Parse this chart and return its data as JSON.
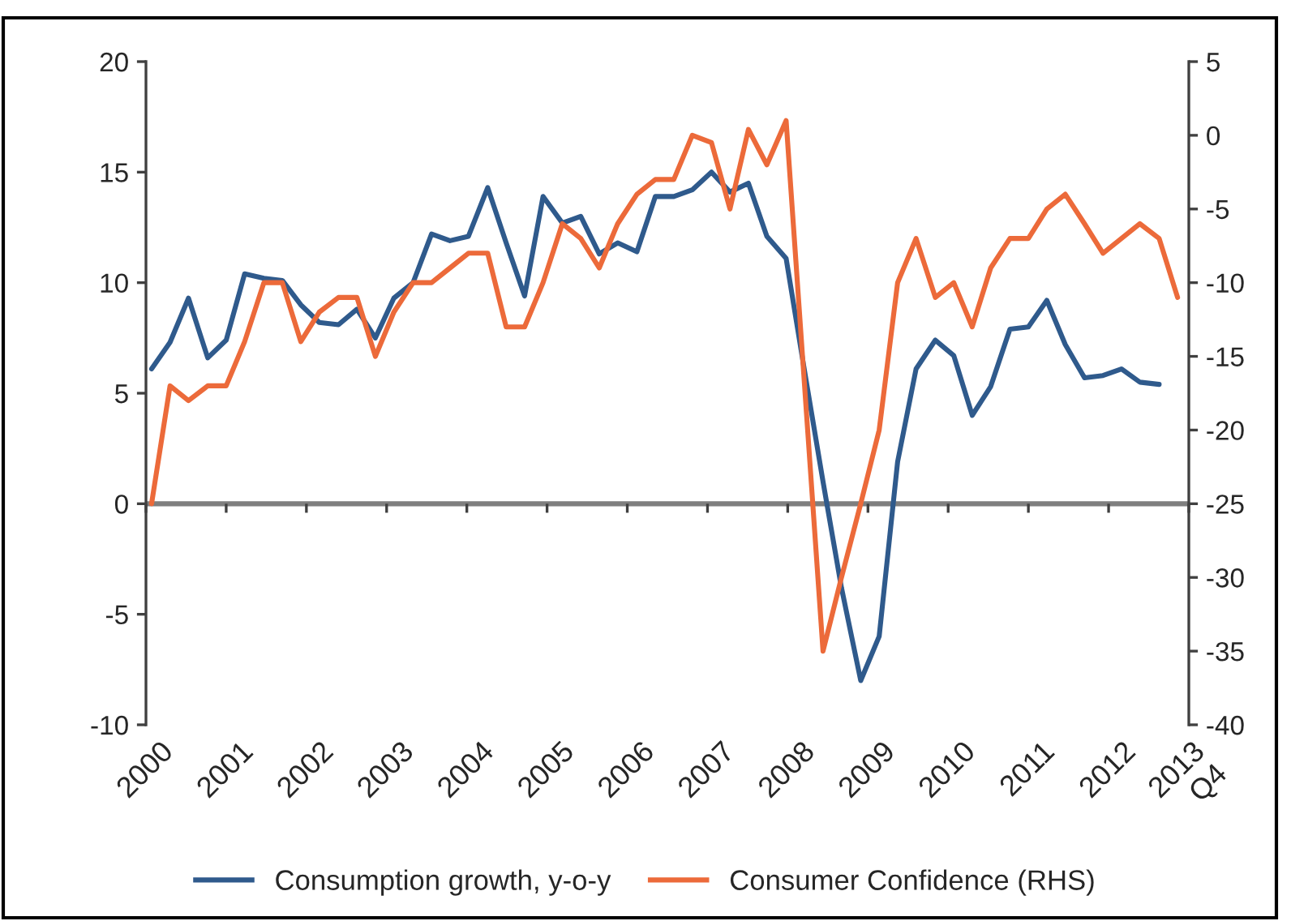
{
  "chart_data": {
    "type": "line",
    "xlim": [
      2000,
      2013
    ],
    "xticks": [
      2000,
      2001,
      2002,
      2003,
      2004,
      2005,
      2006,
      2007,
      2008,
      2009,
      2010,
      2011,
      2012,
      {
        "value": 2013,
        "label": "2013\nQ4"
      }
    ],
    "ylim": [
      -10,
      20
    ],
    "yticks": [
      -10,
      -5,
      0,
      5,
      10,
      15,
      20
    ],
    "y2lim": [
      -40,
      5
    ],
    "y2ticks": [
      -40,
      -35,
      -30,
      -25,
      -20,
      -15,
      -10,
      -5,
      0,
      5
    ],
    "grid": false,
    "legend": "bottom",
    "ref_lines": [
      {
        "axis": "y",
        "value": 0,
        "color": "#7f7f7f"
      }
    ],
    "x": [
      2000.07,
      2000.3,
      2000.53,
      2000.77,
      2001.0,
      2001.23,
      2001.47,
      2001.7,
      2001.93,
      2002.16,
      2002.4,
      2002.63,
      2002.86,
      2003.09,
      2003.33,
      2003.56,
      2003.79,
      2004.02,
      2004.26,
      2004.49,
      2004.72,
      2004.95,
      2005.19,
      2005.42,
      2005.65,
      2005.88,
      2006.12,
      2006.35,
      2006.58,
      2006.81,
      2007.05,
      2007.28,
      2007.51,
      2007.74,
      2007.98,
      2008.21,
      2008.44,
      2008.67,
      2008.91,
      2009.14,
      2009.37,
      2009.6,
      2009.84,
      2010.07,
      2010.3,
      2010.53,
      2010.77,
      2011.0,
      2011.23,
      2011.46,
      2011.7,
      2011.93,
      2012.16,
      2012.39,
      2012.63,
      2012.86
    ],
    "series": [
      {
        "name": "Consumption growth, y-o-y",
        "color": "#2f5a8c",
        "values": [
          6.1,
          7.3,
          9.3,
          6.6,
          7.4,
          10.4,
          10.2,
          10.1,
          9.0,
          8.2,
          8.1,
          8.8,
          7.5,
          9.3,
          10.0,
          12.2,
          11.9,
          12.1,
          14.3,
          11.8,
          9.4,
          13.9,
          12.7,
          13.0,
          11.3,
          11.8,
          11.4,
          13.9,
          13.9,
          14.2,
          15.0,
          14.1,
          14.5,
          12.1,
          11.1,
          6.0,
          1.0,
          -3.8,
          -8.0,
          -6.0,
          1.9,
          6.1,
          7.4,
          6.7,
          4.0,
          5.3,
          7.9,
          8.0,
          9.2,
          7.2,
          5.7,
          5.8,
          6.1,
          5.5,
          5.4,
          null
        ]
      },
      {
        "name": "Consumer Confidence (RHS)",
        "color": "#ec6a3a",
        "axis": "y2",
        "values": [
          -25,
          -17,
          -18,
          -17,
          -17,
          -14,
          -10,
          -10,
          -14,
          -12,
          -11,
          -11,
          -15,
          -12,
          -10,
          -10,
          -9,
          -8,
          -8,
          -13,
          -13,
          -10,
          -6,
          -7,
          -9,
          -6,
          -4,
          -3,
          -3,
          0,
          -0.5,
          -5,
          0.4,
          -2,
          1,
          -17,
          -35,
          -30,
          -25,
          -20,
          -10,
          -7,
          -11,
          -10,
          -13,
          -9,
          -7,
          -7,
          -5,
          -4,
          -6,
          -8,
          -7,
          -6,
          -7,
          -11
        ]
      }
    ]
  }
}
